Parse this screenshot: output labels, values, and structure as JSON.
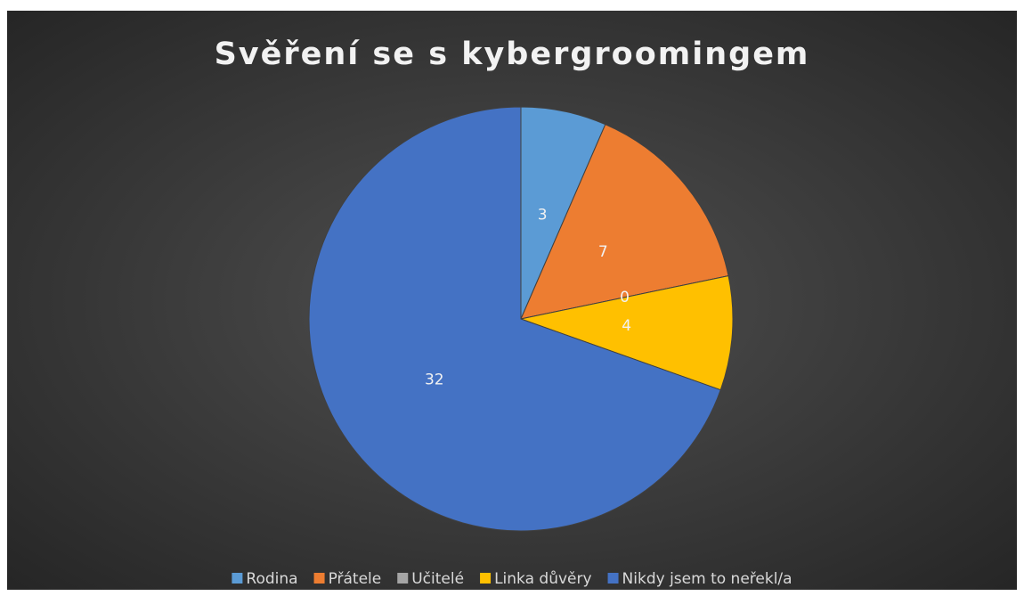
{
  "chart_data": {
    "type": "pie",
    "title": "Svěření se s kybergroomingem",
    "categories": [
      "Rodina",
      "Přátele",
      "Učitelé",
      "Linka důvěry",
      "Nikdy jsem to neřekl/a"
    ],
    "values": [
      3,
      7,
      0,
      4,
      32
    ],
    "colors": [
      "#5b9bd5",
      "#ed7d31",
      "#a5a5a5",
      "#ffc000",
      "#4472c4"
    ],
    "legend": "bottom"
  }
}
